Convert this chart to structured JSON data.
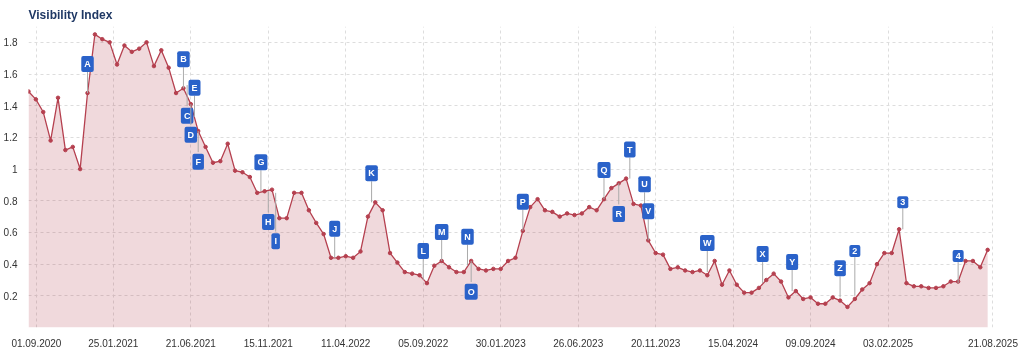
{
  "chart_data": {
    "type": "area",
    "title": "Visibility Index",
    "x": [
      "2020-08-17",
      "2020-08-31",
      "2020-09-14",
      "2020-09-28",
      "2020-10-12",
      "2020-10-26",
      "2020-11-09",
      "2020-11-23",
      "2020-12-07",
      "2020-12-21",
      "2021-01-04",
      "2021-01-18",
      "2021-02-01",
      "2021-02-15",
      "2021-03-01",
      "2021-03-15",
      "2021-03-29",
      "2021-04-12",
      "2021-04-26",
      "2021-05-10",
      "2021-05-24",
      "2021-06-07",
      "2021-06-21",
      "2021-07-05",
      "2021-07-19",
      "2021-08-02",
      "2021-08-16",
      "2021-08-30",
      "2021-09-13",
      "2021-09-27",
      "2021-10-11",
      "2021-10-25",
      "2021-11-08",
      "2021-11-22",
      "2021-12-06",
      "2021-12-20",
      "2022-01-03",
      "2022-01-17",
      "2022-01-31",
      "2022-02-14",
      "2022-02-28",
      "2022-03-14",
      "2022-03-28",
      "2022-04-11",
      "2022-04-25",
      "2022-05-09",
      "2022-05-23",
      "2022-06-06",
      "2022-06-20",
      "2022-07-04",
      "2022-07-18",
      "2022-08-01",
      "2022-08-15",
      "2022-08-29",
      "2022-09-12",
      "2022-09-26",
      "2022-10-10",
      "2022-10-24",
      "2022-11-07",
      "2022-11-21",
      "2022-12-05",
      "2022-12-19",
      "2023-01-02",
      "2023-01-16",
      "2023-01-30",
      "2023-02-13",
      "2023-02-27",
      "2023-03-13",
      "2023-03-27",
      "2023-04-10",
      "2023-04-24",
      "2023-05-08",
      "2023-05-22",
      "2023-06-05",
      "2023-06-19",
      "2023-07-03",
      "2023-07-17",
      "2023-07-31",
      "2023-08-14",
      "2023-08-28",
      "2023-09-11",
      "2023-09-25",
      "2023-10-09",
      "2023-10-23",
      "2023-11-06",
      "2023-11-20",
      "2023-12-04",
      "2023-12-18",
      "2024-01-01",
      "2024-01-15",
      "2024-01-29",
      "2024-02-12",
      "2024-02-26",
      "2024-03-11",
      "2024-03-25",
      "2024-04-08",
      "2024-04-22",
      "2024-05-06",
      "2024-05-20",
      "2024-06-03",
      "2024-06-17",
      "2024-07-01",
      "2024-07-15",
      "2024-07-29",
      "2024-08-12",
      "2024-08-26",
      "2024-09-09",
      "2024-09-23",
      "2024-10-07",
      "2024-10-21",
      "2024-11-04",
      "2024-11-18",
      "2024-12-02",
      "2024-12-16",
      "2024-12-30",
      "2025-01-13",
      "2025-01-27",
      "2025-02-10",
      "2025-02-24",
      "2025-03-10",
      "2025-03-24",
      "2025-04-07",
      "2025-04-21",
      "2025-05-05",
      "2025-05-19",
      "2025-06-02",
      "2025-06-16",
      "2025-06-30",
      "2025-07-14",
      "2025-07-28",
      "2025-08-11"
    ],
    "series": [
      {
        "color": "#b5404f",
        "values": [
          1.49,
          1.44,
          1.36,
          1.18,
          1.45,
          1.12,
          1.14,
          1.0,
          1.48,
          1.85,
          1.82,
          1.8,
          1.66,
          1.78,
          1.74,
          1.76,
          1.8,
          1.65,
          1.75,
          1.64,
          1.48,
          1.51,
          1.41,
          1.24,
          1.14,
          1.04,
          1.05,
          1.16,
          0.99,
          0.98,
          0.95,
          0.85,
          0.86,
          0.87,
          0.69,
          0.69,
          0.85,
          0.85,
          0.74,
          0.66,
          0.59,
          0.44,
          0.44,
          0.45,
          0.44,
          0.48,
          0.7,
          0.79,
          0.74,
          0.47,
          0.41,
          0.35,
          0.34,
          0.33,
          0.28,
          0.39,
          0.42,
          0.38,
          0.35,
          0.35,
          0.42,
          0.37,
          0.36,
          0.37,
          0.37,
          0.42,
          0.44,
          0.61,
          0.76,
          0.81,
          0.74,
          0.73,
          0.7,
          0.72,
          0.71,
          0.72,
          0.76,
          0.74,
          0.81,
          0.88,
          0.91,
          0.94,
          0.78,
          0.77,
          0.55,
          0.47,
          0.46,
          0.37,
          0.38,
          0.36,
          0.35,
          0.36,
          0.33,
          0.42,
          0.27,
          0.36,
          0.27,
          0.22,
          0.22,
          0.25,
          0.3,
          0.34,
          0.29,
          0.19,
          0.23,
          0.18,
          0.19,
          0.15,
          0.15,
          0.19,
          0.17,
          0.13,
          0.18,
          0.24,
          0.28,
          0.4,
          0.47,
          0.47,
          0.62,
          0.28,
          0.26,
          0.26,
          0.25,
          0.25,
          0.26,
          0.29,
          0.29,
          0.42,
          0.42,
          0.38,
          0.49
        ]
      }
    ],
    "xlim": [
      "2020-08-17",
      "2025-08-24"
    ],
    "xticks": [
      {
        "value": "2020-09-01",
        "label": "01.09.2020"
      },
      {
        "value": "2021-01-25",
        "label": "25.01.2021"
      },
      {
        "value": "2021-06-21",
        "label": "21.06.2021"
      },
      {
        "value": "2021-11-15",
        "label": "15.11.2021"
      },
      {
        "value": "2022-04-11",
        "label": "11.04.2022"
      },
      {
        "value": "2022-09-05",
        "label": "05.09.2022"
      },
      {
        "value": "2023-01-30",
        "label": "30.01.2023"
      },
      {
        "value": "2023-06-26",
        "label": "26.06.2023"
      },
      {
        "value": "2023-11-20",
        "label": "20.11.2023"
      },
      {
        "value": "2024-04-15",
        "label": "15.04.2024"
      },
      {
        "value": "2024-09-09",
        "label": "09.09.2024"
      },
      {
        "value": "2025-02-03",
        "label": "03.02.2025"
      },
      {
        "value": "2025-08-21",
        "label": "21.08.2025"
      }
    ],
    "ylim": [
      0,
      1.9
    ],
    "yticks": [
      0.2,
      0.4,
      0.6,
      0.8,
      1,
      1.2,
      1.4,
      1.6,
      1.8
    ],
    "grid": true,
    "marker": "circle",
    "annotations": [
      {
        "text": "A",
        "x": "2020-12-07",
        "y": 1.48
      },
      {
        "text": "B",
        "x": "2021-06-07",
        "y": 1.51
      },
      {
        "text": "C",
        "x": "2021-06-14",
        "y": 1.53
      },
      {
        "text": "D",
        "x": "2021-06-21",
        "y": 1.41
      },
      {
        "text": "E",
        "x": "2021-06-28",
        "y": 1.33
      },
      {
        "text": "F",
        "x": "2021-07-05",
        "y": 1.24
      },
      {
        "text": "G",
        "x": "2021-11-01",
        "y": 0.86
      },
      {
        "text": "H",
        "x": "2021-11-15",
        "y": 0.86
      },
      {
        "text": "I",
        "x": "2021-11-29",
        "y": 0.85
      },
      {
        "text": "J",
        "x": "2022-03-21",
        "y": 0.44
      },
      {
        "text": "K",
        "x": "2022-05-30",
        "y": 0.79
      },
      {
        "text": "L",
        "x": "2022-09-05",
        "y": 0.3
      },
      {
        "text": "M",
        "x": "2022-10-10",
        "y": 0.42
      },
      {
        "text": "N",
        "x": "2022-11-28",
        "y": 0.39
      },
      {
        "text": "O",
        "x": "2022-12-05",
        "y": 0.42
      },
      {
        "text": "P",
        "x": "2023-03-13",
        "y": 0.61
      },
      {
        "text": "Q",
        "x": "2023-08-14",
        "y": 0.81
      },
      {
        "text": "R",
        "x": "2023-09-11",
        "y": 0.91
      },
      {
        "text": "T",
        "x": "2023-10-02",
        "y": 0.94
      },
      {
        "text": "U",
        "x": "2023-10-30",
        "y": 0.72
      },
      {
        "text": "V",
        "x": "2023-11-06",
        "y": 0.55
      },
      {
        "text": "W",
        "x": "2024-02-26",
        "y": 0.35
      },
      {
        "text": "X",
        "x": "2024-06-10",
        "y": 0.28
      },
      {
        "text": "Y",
        "x": "2024-08-05",
        "y": 0.23
      },
      {
        "text": "Z",
        "x": "2024-11-04",
        "y": 0.19
      },
      {
        "text": "2",
        "x": "2024-12-02",
        "y": 0.2
      },
      {
        "text": "3",
        "x": "2025-03-03",
        "y": 0.62
      },
      {
        "text": "4",
        "x": "2025-06-16",
        "y": 0.28
      }
    ]
  }
}
